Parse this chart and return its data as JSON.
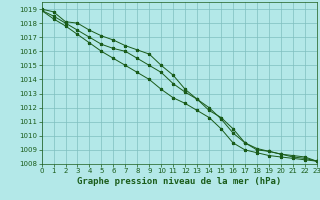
{
  "title": "Graphe pression niveau de la mer (hPa)",
  "x_values": [
    0,
    1,
    2,
    3,
    4,
    5,
    6,
    7,
    8,
    9,
    10,
    11,
    12,
    13,
    14,
    15,
    16,
    17,
    18,
    19,
    20,
    21,
    22,
    23
  ],
  "series": [
    [
      1019.0,
      1018.8,
      1018.1,
      1018.0,
      1017.5,
      1017.1,
      1016.8,
      1016.4,
      1016.1,
      1015.8,
      1015.0,
      1014.3,
      1013.3,
      1012.6,
      1011.8,
      1011.3,
      1010.5,
      1009.5,
      1009.1,
      1008.9,
      1008.7,
      1008.5,
      1008.4,
      1008.2
    ],
    [
      1018.9,
      1018.5,
      1018.0,
      1017.5,
      1017.0,
      1016.5,
      1016.2,
      1016.0,
      1015.5,
      1015.0,
      1014.5,
      1013.7,
      1013.1,
      1012.6,
      1012.0,
      1011.2,
      1010.2,
      1009.5,
      1009.0,
      1008.9,
      1008.7,
      1008.6,
      1008.5,
      1008.2
    ],
    [
      1018.9,
      1018.3,
      1017.8,
      1017.2,
      1016.6,
      1016.0,
      1015.5,
      1015.0,
      1014.5,
      1014.0,
      1013.3,
      1012.7,
      1012.3,
      1011.8,
      1011.3,
      1010.5,
      1009.5,
      1009.0,
      1008.8,
      1008.6,
      1008.5,
      1008.4,
      1008.3,
      1008.2
    ]
  ],
  "ylim": [
    1008.0,
    1019.5
  ],
  "yticks": [
    1008,
    1009,
    1010,
    1011,
    1012,
    1013,
    1014,
    1015,
    1016,
    1017,
    1018,
    1019
  ],
  "xlim": [
    0,
    23
  ],
  "xticks": [
    0,
    1,
    2,
    3,
    4,
    5,
    6,
    7,
    8,
    9,
    10,
    11,
    12,
    13,
    14,
    15,
    16,
    17,
    18,
    19,
    20,
    21,
    22,
    23
  ],
  "line_color": "#1a5c1a",
  "marker": "*",
  "bg_color": "#b3e8e8",
  "grid_color": "#7fbfbf",
  "tick_label_color": "#1a5c1a",
  "title_color": "#1a5c1a",
  "title_fontsize": 6.5,
  "tick_fontsize": 5.0
}
